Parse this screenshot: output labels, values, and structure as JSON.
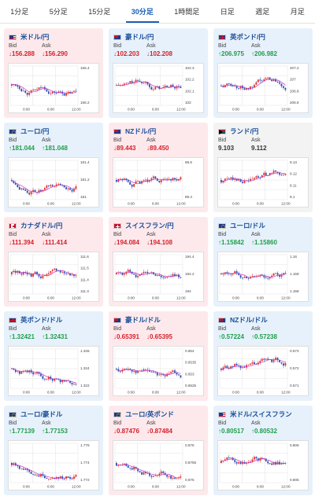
{
  "tabs": [
    {
      "label": "1分足",
      "active": false
    },
    {
      "label": "5分足",
      "active": false
    },
    {
      "label": "15分足",
      "active": false
    },
    {
      "label": "30分足",
      "active": true
    },
    {
      "label": "1時間足",
      "active": false
    },
    {
      "label": "日足",
      "active": false
    },
    {
      "label": "週足",
      "active": false
    },
    {
      "label": "月足",
      "active": false
    }
  ],
  "bid_label": "Bid",
  "ask_label": "Ask",
  "colors": {
    "up": "#1f9e4a",
    "down": "#d6202a",
    "candle_up": "#e0312f",
    "candle_down": "#2a4db3",
    "ma": "#c437c4"
  },
  "pairs": [
    {
      "name": "米ドル/円",
      "flag": "us",
      "trend": "down",
      "bid": "↓156.288",
      "ask": "↓156.290",
      "bid_dir": "down",
      "ask_dir": "down",
      "y_ticks": [
        "156.4",
        "156.2"
      ],
      "x_ticks": [
        "0:00",
        "6:00",
        "12:00"
      ]
    },
    {
      "name": "豪ドル/円",
      "flag": "au",
      "trend": "up",
      "bid": "↓102.203",
      "ask": "↓102.208",
      "bid_dir": "down",
      "ask_dir": "down",
      "y_ticks": [
        "102.3",
        "102.2",
        "102.1",
        "102"
      ],
      "x_ticks": [
        "0:00",
        "6:00",
        "12:00"
      ]
    },
    {
      "name": "英ポンド/円",
      "flag": "gb",
      "trend": "up",
      "bid": "↑206.975",
      "ask": "↑206.982",
      "bid_dir": "up",
      "ask_dir": "up",
      "y_ticks": [
        "207.2",
        "207",
        "206.8",
        "206.6"
      ],
      "x_ticks": [
        "0:00",
        "6:00",
        "12:00"
      ]
    },
    {
      "name": "ユーロ/円",
      "flag": "eu",
      "trend": "up",
      "bid": "↑181.044",
      "ask": "↑181.048",
      "bid_dir": "up",
      "ask_dir": "up",
      "y_ticks": [
        "181.4",
        "181.2",
        "181"
      ],
      "x_ticks": [
        "0:00",
        "6:00",
        "12:00"
      ]
    },
    {
      "name": "NZドル/円",
      "flag": "nz",
      "trend": "down",
      "bid": "↓89.443",
      "ask": "↓89.450",
      "bid_dir": "down",
      "ask_dir": "down",
      "y_ticks": [
        "89.6",
        "89.4"
      ],
      "x_ticks": [
        "0:00",
        "6:00",
        "12:00"
      ]
    },
    {
      "name": "ランド/円",
      "flag": "za",
      "trend": "flat",
      "bid": "9.103",
      "ask": "9.112",
      "bid_dir": "flat",
      "ask_dir": "flat",
      "y_ticks": [
        "9.13",
        "9.12",
        "9.11",
        "9.1"
      ],
      "x_ticks": [
        "0:00",
        "6:00",
        "12:00"
      ]
    },
    {
      "name": "カナダドル/円",
      "flag": "ca",
      "trend": "down",
      "bid": "↓111.394",
      "ask": "↓111.414",
      "bid_dir": "down",
      "ask_dir": "down",
      "y_ticks": [
        "111.6",
        "111.5",
        "111.4",
        "111.3"
      ],
      "x_ticks": [
        "0:00",
        "6:00",
        "12:00"
      ]
    },
    {
      "name": "スイスフラン/円",
      "flag": "ch",
      "trend": "down",
      "bid": "↓194.084",
      "ask": "↓194.108",
      "bid_dir": "down",
      "ask_dir": "down",
      "y_ticks": [
        "194.4",
        "194.2",
        "194"
      ],
      "x_ticks": [
        "0:00",
        "6:00",
        "12:00"
      ]
    },
    {
      "name": "ユーロ/ドル",
      "flag": "eu",
      "trend": "up",
      "bid": "↑1.15842",
      "ask": "↑1.15860",
      "bid_dir": "up",
      "ask_dir": "up",
      "y_ticks": [
        "1.16",
        "1.159",
        "1.158"
      ],
      "x_ticks": [
        "0:00",
        "6:00",
        "12:00"
      ]
    },
    {
      "name": "英ポンド/ドル",
      "flag": "gb",
      "trend": "up",
      "bid": "↑1.32421",
      "ask": "↑1.32431",
      "bid_dir": "up",
      "ask_dir": "up",
      "y_ticks": [
        "1.326",
        "1.324",
        "1.322"
      ],
      "x_ticks": [
        "0:00",
        "6:00",
        "12:00"
      ]
    },
    {
      "name": "豪ドル/ドル",
      "flag": "au",
      "trend": "down",
      "bid": "↓0.65391",
      "ask": "↓0.65395",
      "bid_dir": "down",
      "ask_dir": "down",
      "y_ticks": [
        "0.654",
        "0.6535",
        "0.653",
        "0.6525"
      ],
      "x_ticks": [
        "0:00",
        "6:00",
        "12:00"
      ]
    },
    {
      "name": "NZドル/ドル",
      "flag": "nz",
      "trend": "up",
      "bid": "↑0.57224",
      "ask": "↑0.57238",
      "bid_dir": "up",
      "ask_dir": "up",
      "y_ticks": [
        "0.573",
        "0.572",
        "0.571"
      ],
      "x_ticks": [
        "0:00",
        "6:00",
        "12:00"
      ]
    },
    {
      "name": "ユーロ/豪ドル",
      "flag": "eu",
      "trend": "up",
      "bid": "↑1.77139",
      "ask": "↑1.77153",
      "bid_dir": "up",
      "ask_dir": "up",
      "y_ticks": [
        "1.776",
        "1.774",
        "1.772"
      ],
      "x_ticks": [
        "0:00",
        "6:00",
        "12:00"
      ]
    },
    {
      "name": "ユーロ/英ポンド",
      "flag": "eu",
      "trend": "down",
      "bid": "↓0.87476",
      "ask": "↓0.87484",
      "bid_dir": "down",
      "ask_dir": "down",
      "y_ticks": [
        "0.876",
        "0.8755",
        "0.875"
      ],
      "x_ticks": [
        "0:00",
        "6:00",
        "12:00"
      ]
    },
    {
      "name": "米ドル/スイスフラン",
      "flag": "us",
      "trend": "up",
      "bid": "↑0.80517",
      "ask": "↑0.80532",
      "bid_dir": "up",
      "ask_dir": "up",
      "y_ticks": [
        "0.806",
        "0.805"
      ],
      "x_ticks": [
        "0:00",
        "6:00",
        "12:00"
      ]
    }
  ]
}
